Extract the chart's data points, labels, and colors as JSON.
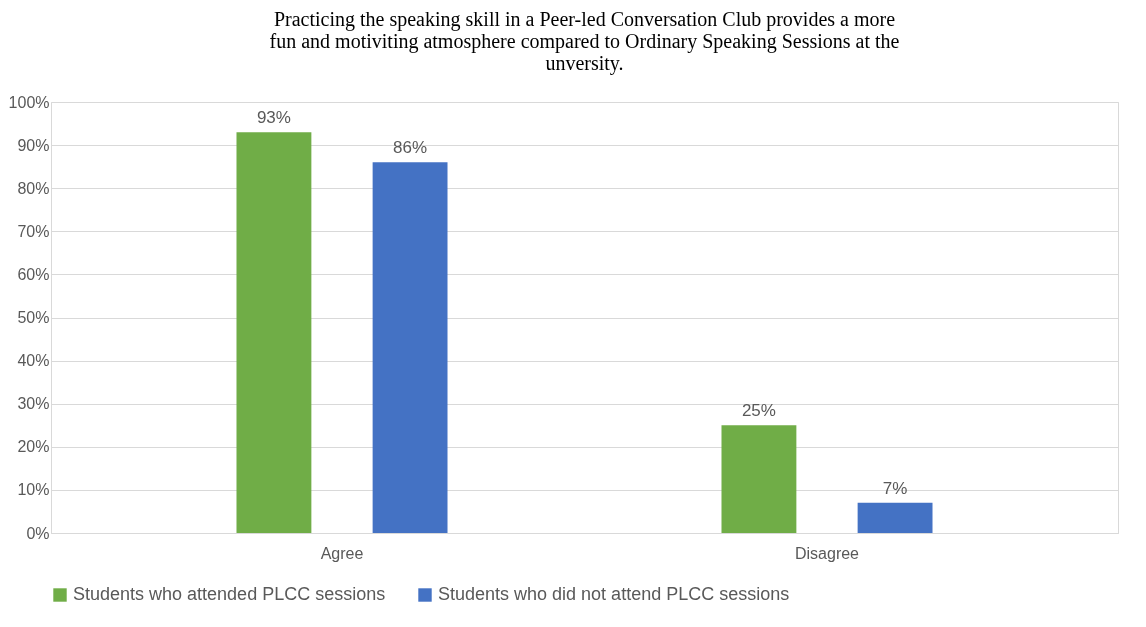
{
  "chart_data": {
    "type": "bar",
    "title": "Practicing the speaking skill in a Peer-led Conversation Club provides a more fun and motiviting atmosphere compared to Ordinary Speaking Sessions at the unversity.",
    "categories": [
      "Agree",
      "Disagree"
    ],
    "series": [
      {
        "name": "Students who attended PLCC sessions",
        "color": "#70ad47",
        "values": [
          93,
          25
        ],
        "value_labels": [
          "93%",
          "25%"
        ]
      },
      {
        "name": "Students who did not attend PLCC sessions",
        "color": "#4472c4",
        "values": [
          86,
          7
        ],
        "value_labels": [
          "86%",
          "7%"
        ]
      }
    ],
    "ylim": [
      0,
      100
    ],
    "yticks": [
      {
        "value": 0,
        "label": "0%"
      },
      {
        "value": 10,
        "label": "10%"
      },
      {
        "value": 20,
        "label": "20%"
      },
      {
        "value": 30,
        "label": "30%"
      },
      {
        "value": 40,
        "label": "40%"
      },
      {
        "value": 50,
        "label": "50%"
      },
      {
        "value": 60,
        "label": "60%"
      },
      {
        "value": 70,
        "label": "70%"
      },
      {
        "value": 80,
        "label": "80%"
      },
      {
        "value": 90,
        "label": "90%"
      },
      {
        "value": 100,
        "label": "100%"
      }
    ],
    "grid": "y",
    "legend": "bottom"
  }
}
